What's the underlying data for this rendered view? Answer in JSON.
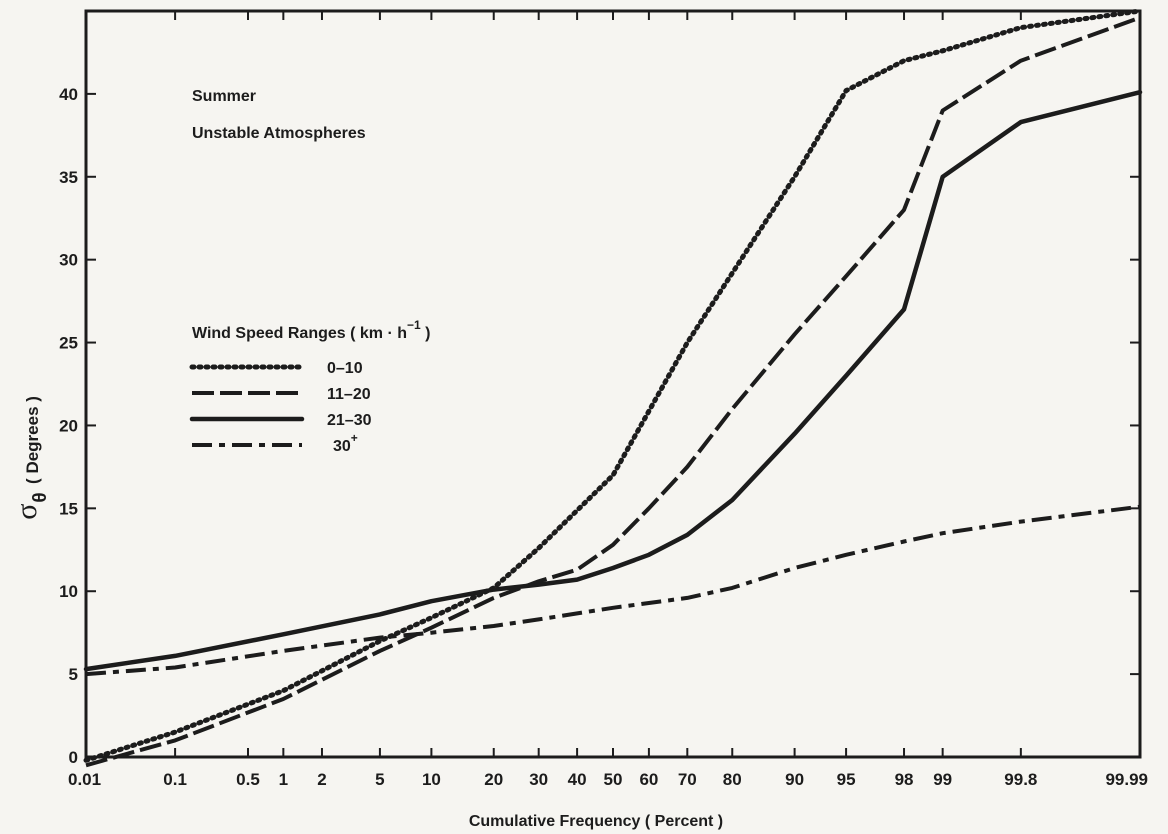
{
  "chart_data": {
    "type": "line",
    "x_scale": "probability",
    "xlabel": "Cumulative Frequency ( Percent )",
    "ylabel_symbol": "σ",
    "ylabel_subscript": "θ",
    "ylabel_unit": "( Degrees )",
    "ylim": [
      0,
      45
    ],
    "xlim": [
      0.01,
      99.99
    ],
    "x_ticks": [
      {
        "value": 0.01,
        "label": "0.01"
      },
      {
        "value": 0.1,
        "label": "0.1"
      },
      {
        "value": 0.5,
        "label": "0.5"
      },
      {
        "value": 1,
        "label": "1"
      },
      {
        "value": 2,
        "label": "2"
      },
      {
        "value": 5,
        "label": "5"
      },
      {
        "value": 10,
        "label": "10"
      },
      {
        "value": 20,
        "label": "20"
      },
      {
        "value": 30,
        "label": "30"
      },
      {
        "value": 40,
        "label": "40"
      },
      {
        "value": 50,
        "label": "50"
      },
      {
        "value": 60,
        "label": "60"
      },
      {
        "value": 70,
        "label": "70"
      },
      {
        "value": 80,
        "label": "80"
      },
      {
        "value": 90,
        "label": "90"
      },
      {
        "value": 95,
        "label": "95"
      },
      {
        "value": 98,
        "label": "98"
      },
      {
        "value": 99,
        "label": "99"
      },
      {
        "value": 99.8,
        "label": "99.8"
      },
      {
        "value": 99.99,
        "label": "99.99"
      }
    ],
    "y_ticks": [
      0,
      5,
      10,
      15,
      20,
      25,
      30,
      35,
      40
    ],
    "annotations": [
      "Summer",
      "Unstable Atmospheres"
    ],
    "legend": {
      "title": "Wind Speed Ranges ( km · h",
      "title_sup": "−1",
      "title_end": " )",
      "placement": "center-left"
    },
    "series": [
      {
        "name": "0–10",
        "name_sup": "",
        "style": "dotted",
        "points": [
          [
            0.01,
            -0.2
          ],
          [
            0.1,
            1.5
          ],
          [
            1,
            4.0
          ],
          [
            5,
            7.0
          ],
          [
            10,
            8.4
          ],
          [
            20,
            10.2
          ],
          [
            30,
            12.6
          ],
          [
            50,
            17.0
          ],
          [
            70,
            25.0
          ],
          [
            90,
            35.0
          ],
          [
            95,
            40.2
          ],
          [
            98,
            42.0
          ],
          [
            99,
            42.6
          ],
          [
            99.8,
            44.0
          ],
          [
            99.99,
            45.0
          ]
        ]
      },
      {
        "name": "11–20",
        "name_sup": "",
        "style": "long-dash",
        "points": [
          [
            0.01,
            -0.5
          ],
          [
            0.1,
            1.0
          ],
          [
            1,
            3.5
          ],
          [
            5,
            6.4
          ],
          [
            10,
            7.8
          ],
          [
            20,
            9.6
          ],
          [
            30,
            10.6
          ],
          [
            40,
            11.3
          ],
          [
            50,
            12.8
          ],
          [
            60,
            15.0
          ],
          [
            70,
            17.5
          ],
          [
            80,
            21.0
          ],
          [
            90,
            25.5
          ],
          [
            95,
            29.0
          ],
          [
            98,
            33.0
          ],
          [
            99,
            39.0
          ],
          [
            99.8,
            42.0
          ],
          [
            99.99,
            44.6
          ]
        ]
      },
      {
        "name": "21–30",
        "name_sup": "",
        "style": "solid",
        "points": [
          [
            0.01,
            5.3
          ],
          [
            0.1,
            6.1
          ],
          [
            1,
            7.4
          ],
          [
            5,
            8.6
          ],
          [
            10,
            9.4
          ],
          [
            20,
            10.1
          ],
          [
            30,
            10.4
          ],
          [
            40,
            10.7
          ],
          [
            50,
            11.4
          ],
          [
            60,
            12.2
          ],
          [
            70,
            13.4
          ],
          [
            80,
            15.5
          ],
          [
            90,
            19.5
          ],
          [
            95,
            23.0
          ],
          [
            98,
            27.0
          ],
          [
            99,
            35.0
          ],
          [
            99.8,
            38.3
          ],
          [
            99.99,
            40.1
          ]
        ]
      },
      {
        "name": "30",
        "name_sup": "+",
        "style": "dash-dot",
        "points": [
          [
            0.01,
            5.0
          ],
          [
            0.1,
            5.4
          ],
          [
            1,
            6.4
          ],
          [
            5,
            7.2
          ],
          [
            10,
            7.5
          ],
          [
            20,
            7.9
          ],
          [
            30,
            8.3
          ],
          [
            50,
            9.0
          ],
          [
            70,
            9.6
          ],
          [
            80,
            10.2
          ],
          [
            90,
            11.4
          ],
          [
            95,
            12.2
          ],
          [
            98,
            13.0
          ],
          [
            99,
            13.5
          ],
          [
            99.8,
            14.2
          ],
          [
            99.99,
            15.1
          ]
        ]
      }
    ]
  }
}
